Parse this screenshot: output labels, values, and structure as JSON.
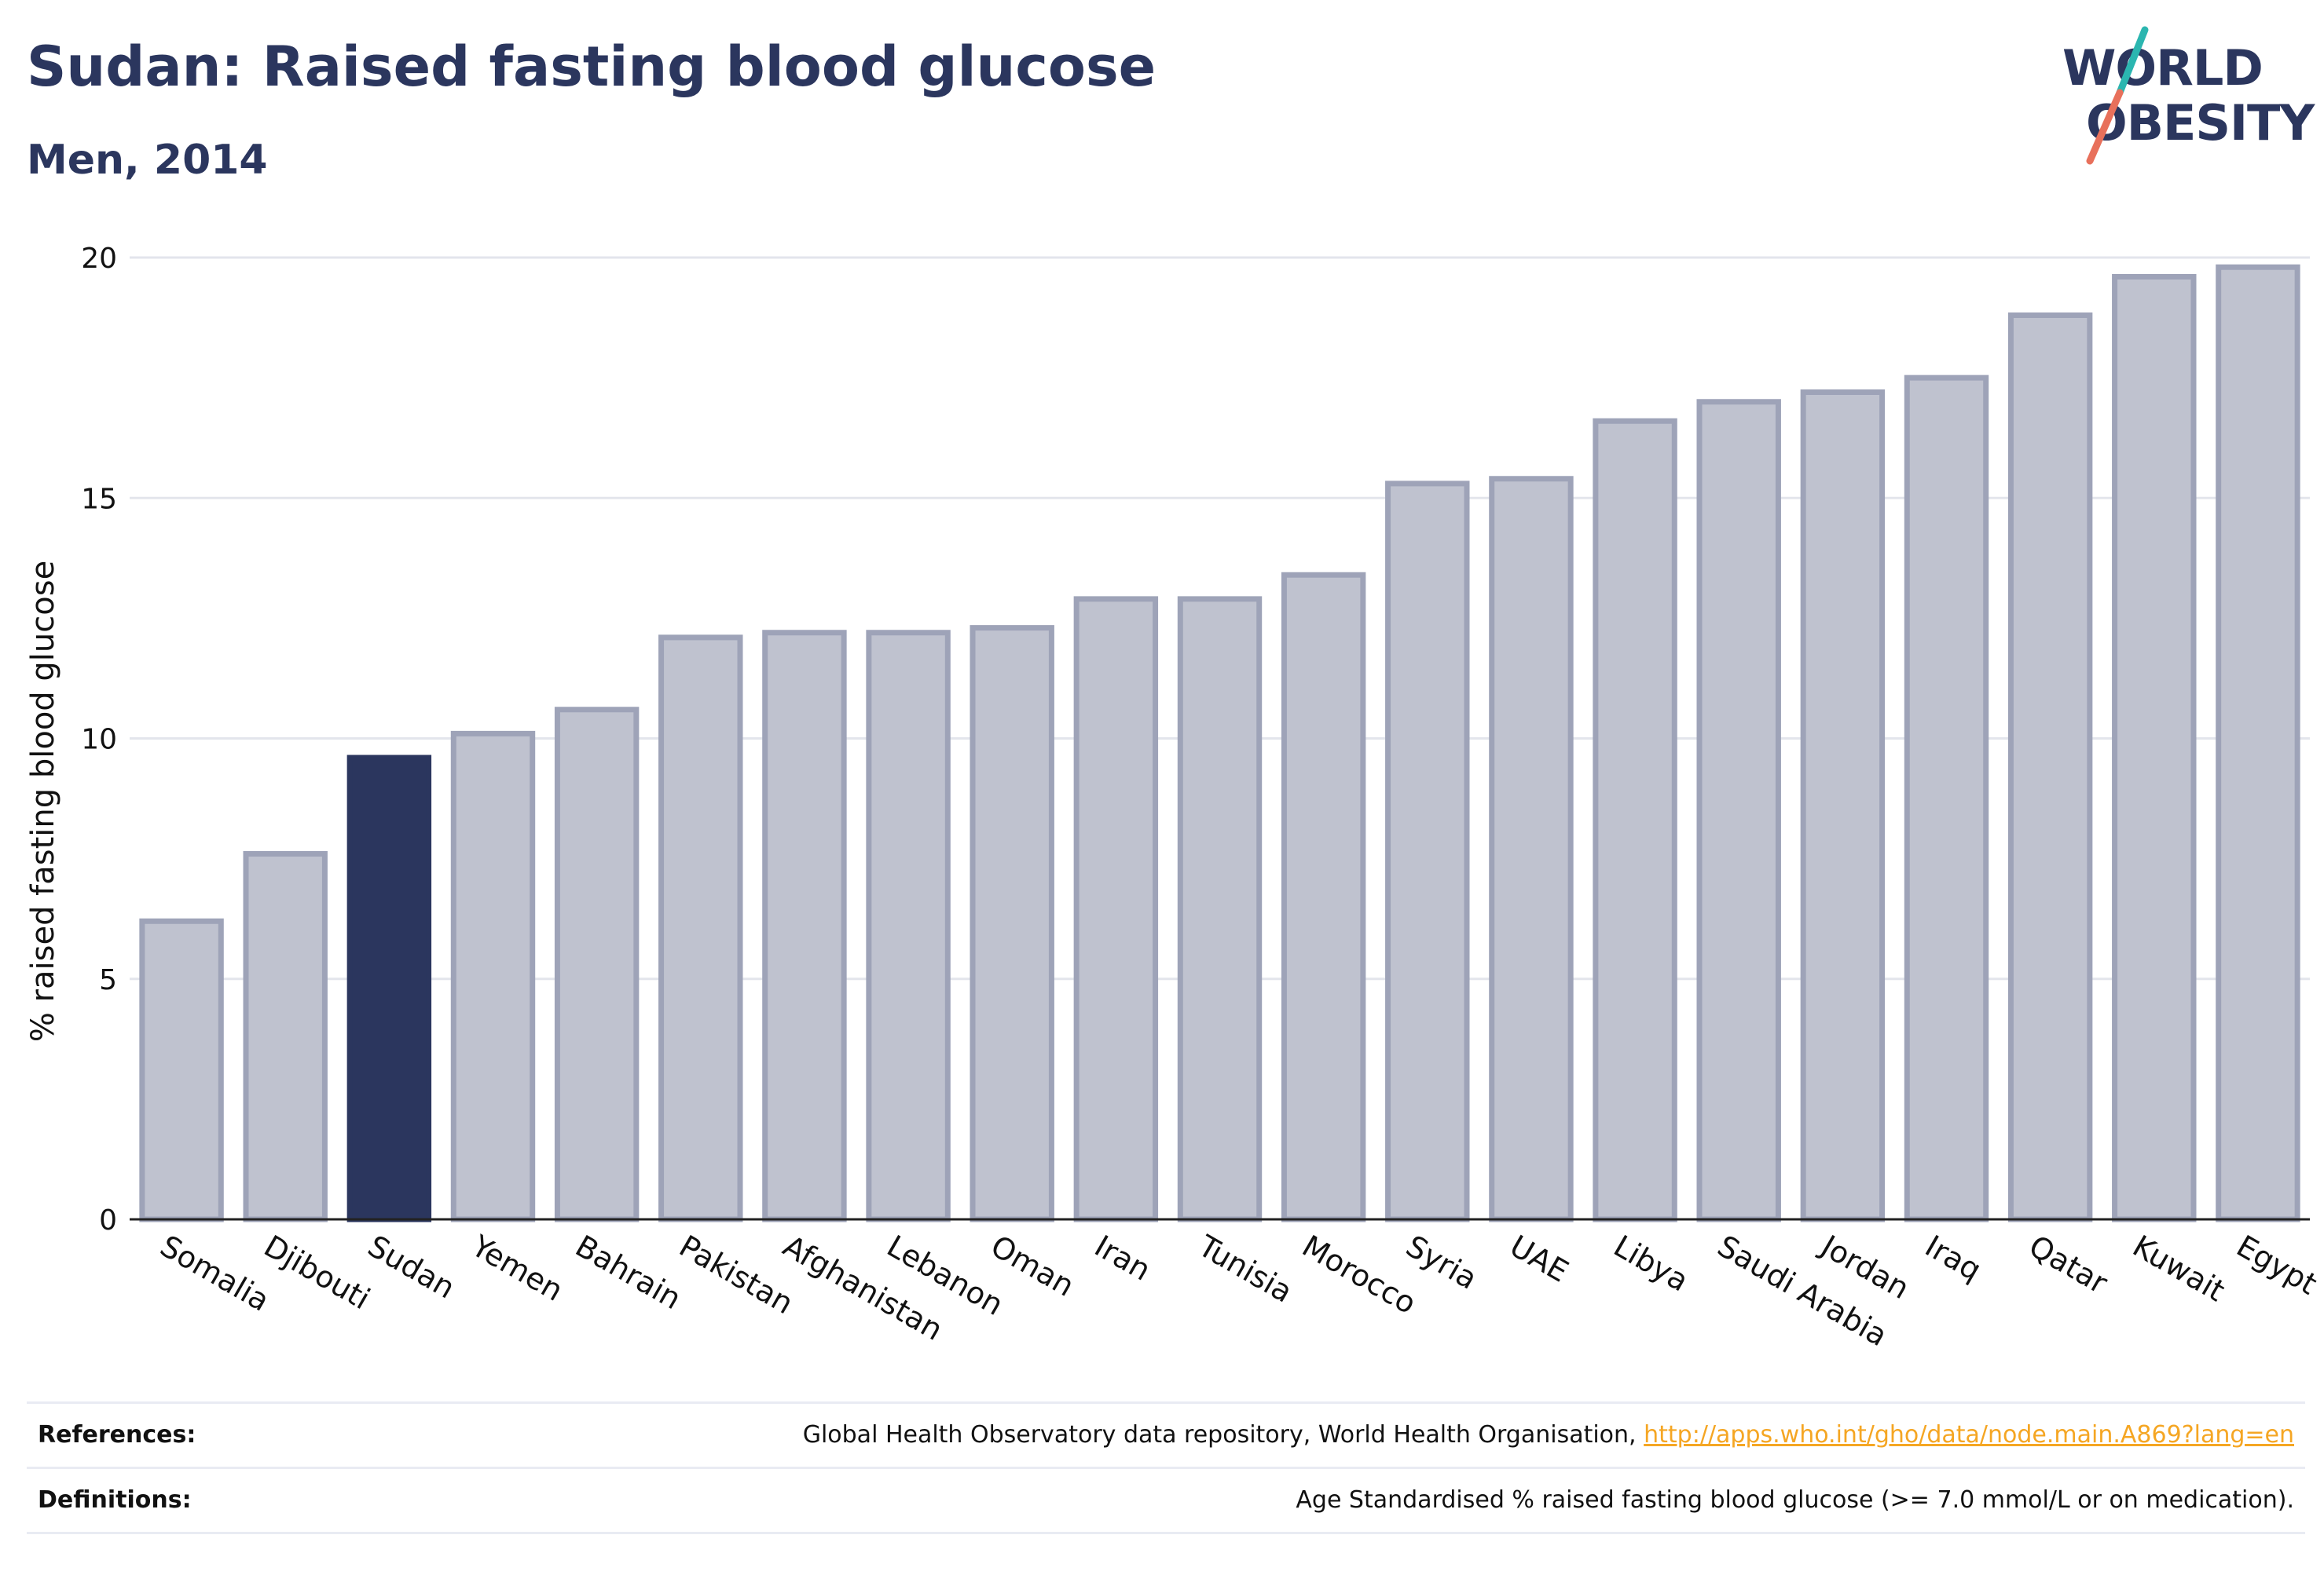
{
  "header": {
    "title": "Sudan: Raised fasting blood glucose",
    "subtitle": "Men, 2014"
  },
  "logo": {
    "line1": "WORLD",
    "line2": "OBESITY",
    "colors": {
      "text": "#2b365e",
      "slash_top": "#2bb6b0",
      "slash_bottom": "#e8705b"
    }
  },
  "chart_data": {
    "type": "bar",
    "title": "Sudan: Raised fasting blood glucose",
    "subtitle": "Men, 2014",
    "ylabel": "% raised fasting blood glucose",
    "xlabel": "",
    "ylim": [
      0,
      20
    ],
    "yticks": [
      0,
      5,
      10,
      15,
      20
    ],
    "grid": true,
    "highlight": "Sudan",
    "colors": {
      "bar": "#bfc2cf",
      "bar_border": "#9ea3b8",
      "highlight": "#2b365e",
      "grid": "#e3e5ec"
    },
    "categories": [
      "Somalia",
      "Djibouti",
      "Sudan",
      "Yemen",
      "Bahrain",
      "Pakistan",
      "Afghanistan",
      "Lebanon",
      "Oman",
      "Iran",
      "Tunisia",
      "Morocco",
      "Syria",
      "UAE",
      "Libya",
      "Saudi Arabia",
      "Jordan",
      "Iraq",
      "Qatar",
      "Kuwait",
      "Egypt"
    ],
    "values": [
      6.2,
      7.6,
      9.6,
      10.1,
      10.6,
      12.1,
      12.2,
      12.2,
      12.3,
      12.9,
      12.9,
      13.4,
      15.3,
      15.4,
      16.6,
      17.0,
      17.2,
      17.5,
      18.8,
      19.6,
      19.8
    ]
  },
  "footer": {
    "references_label": "References:",
    "references_text": "Global Health Observatory data repository, World Health Organisation,",
    "references_link": "http://apps.who.int/gho/data/node.main.A869?lang=en",
    "definitions_label": "Definitions:",
    "definitions_text": "Age Standardised % raised fasting blood glucose (>= 7.0 mmol/L or on medication)."
  }
}
